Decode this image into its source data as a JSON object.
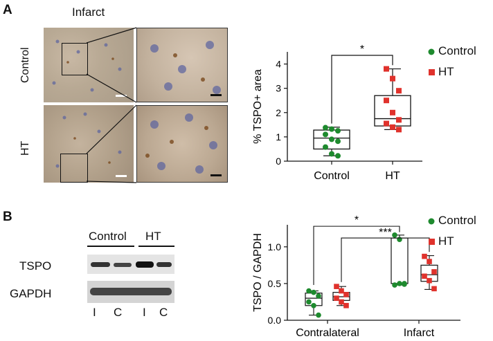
{
  "panel_a": {
    "letter": "A",
    "title": "Infarct",
    "row_labels": [
      "Control",
      "HT"
    ]
  },
  "panel_b": {
    "letter": "B",
    "group_labels": [
      "Control",
      "HT"
    ],
    "lane_labels": [
      "I",
      "C",
      "I",
      "C"
    ],
    "band_labels": [
      "TSPO",
      "GAPDH"
    ]
  },
  "colors": {
    "control": "#1e8a2e",
    "ht": "#e0322c"
  },
  "chart_data": [
    {
      "type": "box",
      "ylabel": "% TSPO+ area",
      "ylim": [
        0,
        4.5
      ],
      "yticks": [
        0,
        1,
        2,
        3,
        4
      ],
      "categories": [
        "Control",
        "HT"
      ],
      "legend": [
        "Control",
        "HT"
      ],
      "significance": [
        "*"
      ],
      "series": [
        {
          "name": "Control",
          "box": {
            "min": 0.22,
            "q1": 0.5,
            "median": 0.95,
            "q3": 1.28,
            "max": 1.4
          },
          "points": [
            1.38,
            1.32,
            1.25,
            1.1,
            0.9,
            0.82,
            0.58,
            0.3,
            0.22
          ]
        },
        {
          "name": "HT",
          "box": {
            "min": 1.3,
            "q1": 1.45,
            "median": 1.75,
            "q3": 2.7,
            "max": 3.8
          },
          "points": [
            3.8,
            3.4,
            2.9,
            2.5,
            2.0,
            1.7,
            1.55,
            1.4,
            1.3
          ]
        }
      ]
    },
    {
      "type": "box",
      "ylabel": "TSPO / GAPDH",
      "ylim": [
        0,
        1.3
      ],
      "yticks": [
        "0.0",
        "0.5",
        "1.0"
      ],
      "ytick_values": [
        0,
        0.5,
        1.0
      ],
      "categories": [
        "Contralateral",
        "Infarct"
      ],
      "legend": [
        "Control",
        "HT"
      ],
      "significance": [
        "*",
        "***"
      ],
      "series": [
        {
          "name": "Control",
          "boxes": [
            {
              "min": 0.07,
              "q1": 0.2,
              "median": 0.3,
              "q3": 0.37,
              "max": 0.4
            },
            {
              "min": 0.48,
              "q1": 0.5,
              "median": 0.5,
              "q3": 1.12,
              "max": 1.16
            }
          ],
          "points": [
            [
              0.4,
              0.38,
              0.33,
              0.25,
              0.2,
              0.07
            ],
            [
              1.16,
              1.1,
              0.5,
              0.48,
              0.5,
              0.49
            ]
          ]
        },
        {
          "name": "HT",
          "boxes": [
            {
              "min": 0.2,
              "q1": 0.27,
              "median": 0.32,
              "q3": 0.38,
              "max": 0.46
            },
            {
              "min": 0.42,
              "q1": 0.53,
              "median": 0.62,
              "q3": 0.75,
              "max": 0.88
            }
          ],
          "points": [
            [
              0.46,
              0.4,
              0.35,
              0.3,
              0.25,
              0.2
            ],
            [
              0.87,
              0.8,
              0.66,
              0.6,
              0.54,
              0.43
            ]
          ]
        }
      ]
    }
  ]
}
